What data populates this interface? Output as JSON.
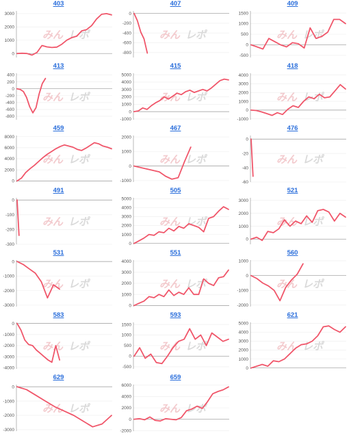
{
  "colors": {
    "line": "#f0566a",
    "title": "#2a6edb",
    "axis": "#9a9a9a",
    "grid": "#ececec"
  },
  "watermark": "みんレポ",
  "chart_data": [
    {
      "type": "line",
      "title": "403",
      "yticks": [
        3000,
        2000,
        1000,
        0
      ],
      "ylim": [
        -300,
        3200
      ],
      "values": [
        0,
        20,
        0,
        -120,
        80,
        600,
        500,
        450,
        480,
        700,
        1000,
        1200,
        1300,
        1700,
        1800,
        2100,
        2600,
        2950,
        3000,
        2900
      ]
    },
    {
      "type": "line",
      "title": "407",
      "yticks": [
        0,
        -200,
        -400,
        -600,
        -800
      ],
      "ylim": [
        -900,
        50
      ],
      "xspan": 0.14,
      "values": [
        0,
        -150,
        -380,
        -520,
        -810
      ]
    },
    {
      "type": "line",
      "title": "409",
      "yticks": [
        1500,
        1000,
        500,
        0,
        -500
      ],
      "ylim": [
        -600,
        1600
      ],
      "values": [
        0,
        -100,
        -200,
        300,
        150,
        0,
        -100,
        100,
        50,
        -150,
        800,
        300,
        400,
        600,
        1200,
        1200,
        1000
      ]
    },
    {
      "type": "line",
      "title": "413",
      "yticks": [
        400,
        200,
        0,
        -200,
        -400,
        -600,
        -800
      ],
      "ylim": [
        -900,
        450
      ],
      "xspan": 0.3,
      "values": [
        0,
        -20,
        -80,
        -250,
        -520,
        -700,
        -550,
        -150,
        150,
        300
      ]
    },
    {
      "type": "line",
      "title": "415",
      "yticks": [
        5000,
        4000,
        3000,
        2000,
        1000,
        0,
        -1000
      ],
      "ylim": [
        -1100,
        5200
      ],
      "values": [
        0,
        100,
        500,
        300,
        800,
        1200,
        1500,
        2000,
        1700,
        2100,
        2500,
        2300,
        2700,
        2900,
        2600,
        2800,
        3000,
        2800,
        3200,
        3700,
        4200,
        4400,
        4300
      ]
    },
    {
      "type": "line",
      "title": "418",
      "yticks": [
        4000,
        3000,
        2000,
        1000,
        0,
        -1000
      ],
      "ylim": [
        -1100,
        4200
      ],
      "values": [
        0,
        -50,
        -200,
        -400,
        -600,
        -300,
        -500,
        100,
        500,
        300,
        1000,
        1500,
        1300,
        1800,
        1400,
        1500,
        2200,
        2900,
        2400
      ]
    },
    {
      "type": "line",
      "title": "459",
      "yticks": [
        8000,
        6000,
        4000,
        2000,
        0
      ],
      "ylim": [
        -200,
        8200
      ],
      "values": [
        0,
        500,
        1500,
        2200,
        2800,
        3500,
        4200,
        4800,
        5300,
        5800,
        6200,
        6500,
        6300,
        6100,
        5700,
        5500,
        5900,
        6400,
        6900,
        6700,
        6300,
        6100,
        5800
      ]
    },
    {
      "type": "line",
      "title": "467",
      "yticks": [
        2000,
        1000,
        0,
        -1000
      ],
      "ylim": [
        -1100,
        2100
      ],
      "xspan": 0.6,
      "values": [
        0,
        -100,
        -200,
        -300,
        -400,
        -700,
        -900,
        -800,
        300,
        1300
      ]
    },
    {
      "type": "line",
      "title": "476",
      "yticks": [
        0,
        -20,
        -40,
        -60
      ],
      "ylim": [
        -60,
        5
      ],
      "xspan": 0.02,
      "values": [
        0,
        -52
      ]
    },
    {
      "type": "line",
      "title": "491",
      "yticks": [
        0,
        -100,
        -200,
        -300
      ],
      "ylim": [
        -300,
        15
      ],
      "xspan": 0.02,
      "values": [
        0,
        -240
      ]
    },
    {
      "type": "line",
      "title": "505",
      "yticks": [
        5000,
        4000,
        3000,
        2000,
        1000,
        0
      ],
      "ylim": [
        -100,
        5100
      ],
      "values": [
        0,
        300,
        600,
        1000,
        900,
        1300,
        1200,
        1700,
        1400,
        1900,
        1700,
        2200,
        2000,
        1800,
        1300,
        2800,
        3000,
        3600,
        4100,
        3800
      ]
    },
    {
      "type": "line",
      "title": "521",
      "yticks": [
        3000,
        2000,
        1000,
        0
      ],
      "ylim": [
        -400,
        3200
      ],
      "values": [
        0,
        150,
        -100,
        600,
        500,
        800,
        1500,
        1000,
        1400,
        1200,
        1800,
        1300,
        2200,
        2300,
        2100,
        1400,
        2000,
        1700
      ]
    },
    {
      "type": "line",
      "title": "531",
      "yticks": [
        0,
        -1000,
        -2000,
        -3000
      ],
      "ylim": [
        -3100,
        100
      ],
      "xspan": 0.45,
      "values": [
        0,
        -200,
        -500,
        -800,
        -1400,
        -2500,
        -1600,
        -1900
      ]
    },
    {
      "type": "line",
      "title": "551",
      "yticks": [
        4000,
        3000,
        2000,
        1000,
        0
      ],
      "ylim": [
        -100,
        4100
      ],
      "values": [
        0,
        200,
        400,
        800,
        700,
        1000,
        800,
        1400,
        900,
        1200,
        1000,
        1600,
        1000,
        1000,
        2400,
        2000,
        1800,
        2500,
        2600,
        3200
      ]
    },
    {
      "type": "line",
      "title": "560",
      "yticks": [
        1000,
        0,
        -1000,
        -2000
      ],
      "ylim": [
        -2100,
        1050
      ],
      "xspan": 0.55,
      "values": [
        0,
        -200,
        -500,
        -700,
        -1000,
        -1700,
        -800,
        -300,
        100,
        800
      ]
    },
    {
      "type": "line",
      "title": "583",
      "yticks": [
        0,
        -1000,
        -2000,
        -3000,
        -4000
      ],
      "ylim": [
        -4100,
        100
      ],
      "xspan": 0.45,
      "values": [
        0,
        -600,
        -1500,
        -1900,
        -2000,
        -2400,
        -2700,
        -3000,
        -3300,
        -3500,
        -2000,
        -3300
      ]
    },
    {
      "type": "line",
      "title": "593",
      "yticks": [
        1500,
        1000,
        500,
        0,
        -500
      ],
      "ylim": [
        -600,
        1600
      ],
      "values": [
        0,
        400,
        -100,
        100,
        -300,
        -350,
        0,
        400,
        700,
        800,
        1300,
        800,
        1000,
        500,
        1100,
        900,
        700,
        800
      ]
    },
    {
      "type": "line",
      "title": "621",
      "yticks": [
        5000,
        4000,
        3000,
        2000,
        1000,
        0
      ],
      "ylim": [
        -100,
        5100
      ],
      "values": [
        0,
        200,
        400,
        200,
        800,
        700,
        1000,
        1600,
        2200,
        2600,
        2700,
        3000,
        3600,
        4600,
        4700,
        4300,
        4000,
        4600
      ]
    },
    {
      "type": "line",
      "title": "629",
      "yticks": [
        0,
        -1000,
        -2000,
        -3000
      ],
      "ylim": [
        -3100,
        150
      ],
      "values": [
        0,
        -200,
        -600,
        -1000,
        -1400,
        -1700,
        -2000,
        -2400,
        -2800,
        -2600,
        -2000
      ]
    },
    {
      "type": "line",
      "title": "659",
      "yticks": [
        6000,
        4000,
        2000,
        0,
        -2000
      ],
      "ylim": [
        -2100,
        6100
      ],
      "values": [
        0,
        100,
        -100,
        400,
        -200,
        -300,
        100,
        0,
        -100,
        300,
        1500,
        1800,
        2300,
        1900,
        3100,
        4500,
        4900,
        5200,
        5700
      ]
    }
  ]
}
